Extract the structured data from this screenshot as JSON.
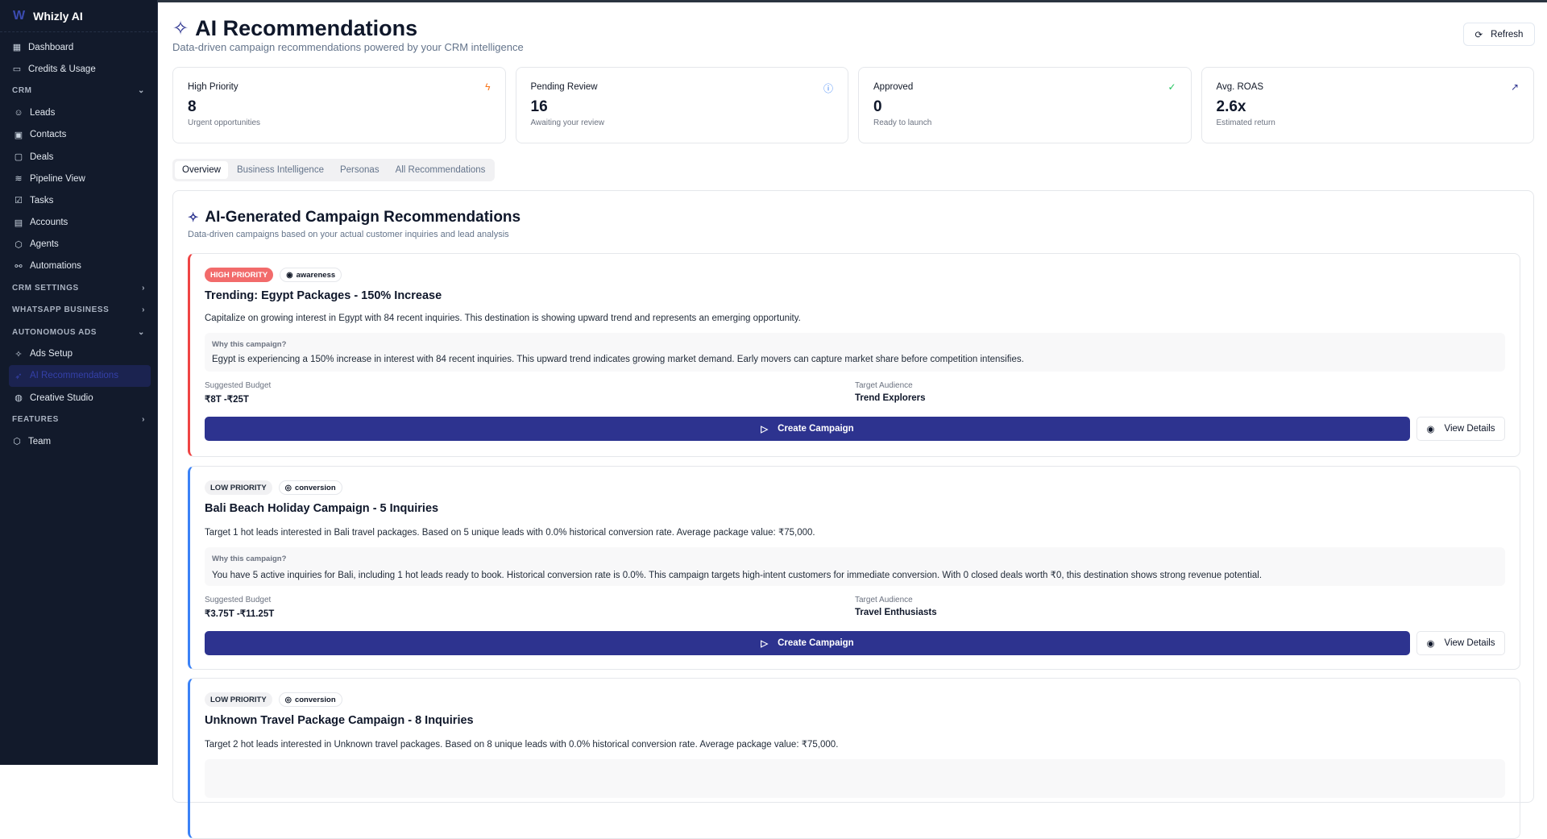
{
  "app": {
    "name": "Whizly AI",
    "logo_mark": "W"
  },
  "sidebar": {
    "items": [
      {
        "type": "item",
        "label": "Dashboard",
        "icon": "dashboard-icon",
        "glyph": "▦"
      },
      {
        "type": "item",
        "label": "Credits & Usage",
        "icon": "credit-card-icon",
        "glyph": "▭"
      },
      {
        "type": "section",
        "label": "CRM",
        "chevron": "⌄"
      },
      {
        "type": "sub",
        "label": "Leads",
        "icon": "users-icon",
        "glyph": "☺"
      },
      {
        "type": "sub",
        "label": "Contacts",
        "icon": "contact-icon",
        "glyph": "▣"
      },
      {
        "type": "sub",
        "label": "Deals",
        "icon": "message-icon",
        "glyph": "▢"
      },
      {
        "type": "sub",
        "label": "Pipeline View",
        "icon": "layers-icon",
        "glyph": "≋"
      },
      {
        "type": "sub",
        "label": "Tasks",
        "icon": "checkbox-icon",
        "glyph": "☑"
      },
      {
        "type": "sub",
        "label": "Accounts",
        "icon": "account-icon",
        "glyph": "▤"
      },
      {
        "type": "sub",
        "label": "Agents",
        "icon": "shield-icon",
        "glyph": "⬡"
      },
      {
        "type": "sub",
        "label": "Automations",
        "icon": "workflow-icon",
        "glyph": "⚯"
      },
      {
        "type": "section",
        "label": "CRM SETTINGS",
        "chevron": "›"
      },
      {
        "type": "section",
        "label": "WHATSAPP BUSINESS",
        "chevron": "›"
      },
      {
        "type": "section",
        "label": "AUTONOMOUS ADS",
        "chevron": "⌄"
      },
      {
        "type": "sub",
        "label": "Ads Setup",
        "icon": "sparkles-icon",
        "glyph": "✧"
      },
      {
        "type": "active",
        "label": "AI Recommendations",
        "icon": "rocket-icon",
        "glyph": "➶"
      },
      {
        "type": "sub",
        "label": "Creative Studio",
        "icon": "palette-icon",
        "glyph": "◍"
      },
      {
        "type": "section",
        "label": "FEATURES",
        "chevron": "›"
      },
      {
        "type": "item",
        "label": "Team",
        "icon": "shield-icon",
        "glyph": "⬡"
      }
    ]
  },
  "header": {
    "title": "AI Recommendations",
    "subtitle": "Data-driven campaign recommendations powered by your CRM intelligence",
    "refresh_label": "Refresh"
  },
  "stats": [
    {
      "label": "High Priority",
      "value": "8",
      "note": "Urgent opportunities",
      "icon": "zap-icon",
      "glyph": "ϟ",
      "color": "#f97316"
    },
    {
      "label": "Pending Review",
      "value": "16",
      "note": "Awaiting your review",
      "icon": "info-icon",
      "glyph": "ⓘ",
      "color": "#3b82f6"
    },
    {
      "label": "Approved",
      "value": "0",
      "note": "Ready to launch",
      "icon": "check-circle-icon",
      "glyph": "✓",
      "color": "#22c55e"
    },
    {
      "label": "Avg. ROAS",
      "value": "2.6x",
      "note": "Estimated return",
      "icon": "trending-up-icon",
      "glyph": "↗",
      "color": "#2d338f"
    }
  ],
  "tabs": [
    {
      "label": "Overview",
      "active": true
    },
    {
      "label": "Business Intelligence"
    },
    {
      "label": "Personas"
    },
    {
      "label": "All Recommendations"
    }
  ],
  "panel": {
    "title": "AI-Generated Campaign Recommendations",
    "subtitle": "Data-driven campaigns based on your actual customer inquiries and lead analysis",
    "why_label": "Why this campaign?",
    "budget_label": "Suggested Budget",
    "audience_label": "Target Audience",
    "create_label": "Create Campaign",
    "view_label": "View Details"
  },
  "colors": {
    "accent": "#2d338f",
    "high": "#f26b6b",
    "low_border": "#3b82f6",
    "sidebar_bg": "#121a2b"
  },
  "recommendations": [
    {
      "priority": "HIGH PRIORITY",
      "level": "high",
      "type": "awareness",
      "type_icon": "eye-icon",
      "title": "Trending: Egypt Packages - 150% Increase",
      "description": "Capitalize on growing interest in Egypt with 84 recent inquiries. This destination is showing upward trend and represents an emerging opportunity.",
      "why": "Egypt is experiencing a 150% increase in interest with 84 recent inquiries. This upward trend indicates growing market demand. Early movers can capture market share before competition intensifies.",
      "budget": "₹8T -₹25T",
      "audience": "Trend Explorers"
    },
    {
      "priority": "LOW PRIORITY",
      "level": "low",
      "type": "conversion",
      "type_icon": "target-icon",
      "title": "Bali Beach Holiday Campaign - 5 Inquiries",
      "description": "Target 1 hot leads interested in Bali travel packages. Based on 5 unique leads with 0.0% historical conversion rate. Average package value: ₹75,000.",
      "why": "You have 5 active inquiries for Bali, including 1 hot leads ready to book. Historical conversion rate is 0.0%. This campaign targets high-intent customers for immediate conversion. With 0 closed deals worth ₹0, this destination shows strong revenue potential.",
      "budget": "₹3.75T -₹11.25T",
      "audience": "Travel Enthusiasts"
    },
    {
      "priority": "LOW PRIORITY",
      "level": "low",
      "type": "conversion",
      "type_icon": "target-icon",
      "title": "Unknown Travel Package Campaign - 8 Inquiries",
      "description": "Target 2 hot leads interested in Unknown travel packages. Based on 8 unique leads with 0.0% historical conversion rate. Average package value: ₹75,000."
    }
  ]
}
